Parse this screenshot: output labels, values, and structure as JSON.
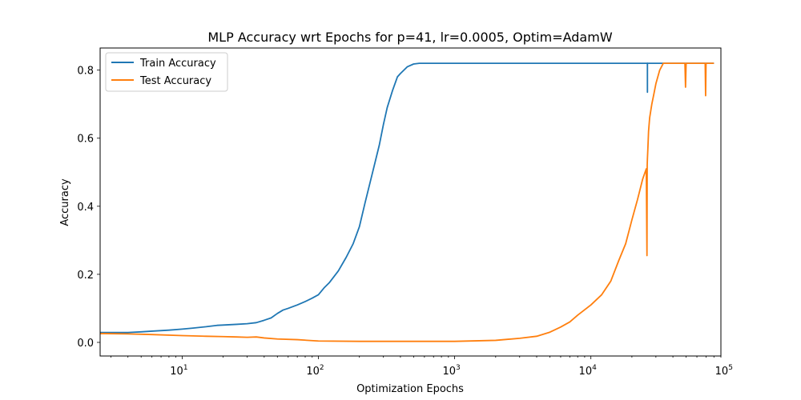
{
  "chart_data": {
    "type": "line",
    "title": "MLP Accuracy wrt Epochs for p=41, lr=0.0005, Optim=AdamW",
    "xlabel": "Optimization Epochs",
    "ylabel": "Accuracy",
    "xscale": "log",
    "xlim": [
      2.5,
      90000
    ],
    "ylim": [
      -0.04,
      0.865
    ],
    "grid": false,
    "legend_position": "top-left",
    "x_ticks": [
      {
        "value": 10,
        "base": "10",
        "exp": "1"
      },
      {
        "value": 100,
        "base": "10",
        "exp": "2"
      },
      {
        "value": 1000,
        "base": "10",
        "exp": "3"
      },
      {
        "value": 10000,
        "base": "10",
        "exp": "4"
      },
      {
        "value": 100000,
        "base": "10",
        "exp": "5"
      }
    ],
    "y_ticks": [
      {
        "value": 0.0,
        "label": "0.0"
      },
      {
        "value": 0.2,
        "label": "0.2"
      },
      {
        "value": 0.4,
        "label": "0.4"
      },
      {
        "value": 0.6,
        "label": "0.6"
      },
      {
        "value": 0.8,
        "label": "0.8"
      }
    ],
    "series": [
      {
        "name": "Train Accuracy",
        "color": "#1f77b4",
        "x": [
          2.5,
          3,
          4,
          5,
          6,
          8,
          10,
          12,
          15,
          18,
          20,
          25,
          30,
          35,
          40,
          45,
          50,
          55,
          60,
          70,
          80,
          90,
          100,
          110,
          120,
          140,
          160,
          180,
          200,
          220,
          250,
          280,
          300,
          320,
          350,
          380,
          400,
          450,
          500,
          550,
          600,
          1000,
          5000,
          10000,
          20000,
          25000,
          26000,
          26001,
          26002,
          30000,
          50000,
          80000
        ],
        "y": [
          0.029,
          0.029,
          0.029,
          0.031,
          0.033,
          0.036,
          0.039,
          0.042,
          0.046,
          0.05,
          0.051,
          0.053,
          0.055,
          0.058,
          0.065,
          0.072,
          0.085,
          0.095,
          0.1,
          0.11,
          0.12,
          0.13,
          0.14,
          0.16,
          0.175,
          0.21,
          0.25,
          0.29,
          0.34,
          0.41,
          0.5,
          0.58,
          0.64,
          0.69,
          0.74,
          0.78,
          0.79,
          0.81,
          0.818,
          0.82,
          0.82,
          0.82,
          0.82,
          0.82,
          0.82,
          0.82,
          0.82,
          0.735,
          0.82,
          0.82,
          0.82,
          0.82
        ]
      },
      {
        "name": "Test Accuracy",
        "color": "#ff7f0e",
        "x": [
          2.5,
          4,
          6,
          10,
          15,
          20,
          25,
          30,
          35,
          40,
          50,
          70,
          100,
          200,
          500,
          1000,
          2000,
          3000,
          4000,
          5000,
          6000,
          7000,
          8000,
          10000,
          12000,
          14000,
          16000,
          18000,
          20000,
          22000,
          24000,
          25500,
          25800,
          25900,
          26000,
          26200,
          26500,
          27000,
          28000,
          29000,
          30000,
          32000,
          34000,
          36000,
          40000,
          45000,
          49000,
          49500,
          50000,
          55000,
          65000,
          69000,
          69500,
          70000,
          75000,
          80000
        ],
        "y": [
          0.026,
          0.025,
          0.023,
          0.02,
          0.018,
          0.017,
          0.016,
          0.015,
          0.016,
          0.013,
          0.01,
          0.008,
          0.004,
          0.003,
          0.003,
          0.003,
          0.006,
          0.012,
          0.018,
          0.03,
          0.045,
          0.06,
          0.08,
          0.11,
          0.14,
          0.18,
          0.24,
          0.29,
          0.36,
          0.42,
          0.48,
          0.51,
          0.255,
          0.52,
          0.54,
          0.57,
          0.62,
          0.66,
          0.7,
          0.73,
          0.76,
          0.8,
          0.82,
          0.82,
          0.82,
          0.82,
          0.82,
          0.75,
          0.82,
          0.82,
          0.82,
          0.82,
          0.725,
          0.82,
          0.82,
          0.82
        ]
      }
    ]
  }
}
